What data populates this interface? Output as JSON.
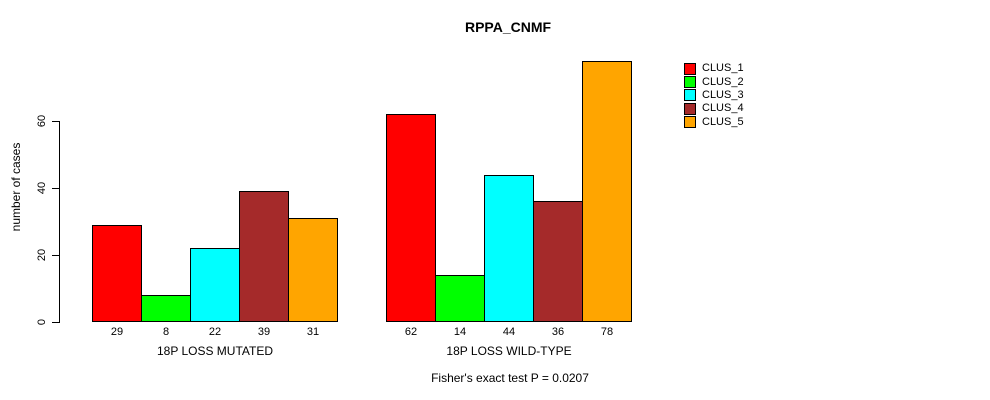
{
  "chart_data": {
    "type": "bar",
    "title": "RPPA_CNMF",
    "xlabel": "",
    "ylabel": "number of cases",
    "groups": [
      "18P LOSS MUTATED",
      "18P LOSS WILD-TYPE"
    ],
    "series": [
      {
        "name": "CLUS_1",
        "color": "#FF0000",
        "values": [
          29,
          62
        ]
      },
      {
        "name": "CLUS_2",
        "color": "#00FF00",
        "values": [
          8,
          14
        ]
      },
      {
        "name": "CLUS_3",
        "color": "#00FFFF",
        "values": [
          22,
          44
        ]
      },
      {
        "name": "CLUS_4",
        "color": "#A52A2A",
        "values": [
          39,
          36
        ]
      },
      {
        "name": "CLUS_5",
        "color": "#FFA500",
        "values": [
          31,
          78
        ]
      }
    ],
    "yticks": [
      0,
      20,
      40,
      60
    ],
    "ylim": [
      0,
      78
    ],
    "grid": false,
    "show_values_under_bars": true,
    "legend_position": "right",
    "annotation": "Fisher's exact test P = 0.0207"
  }
}
